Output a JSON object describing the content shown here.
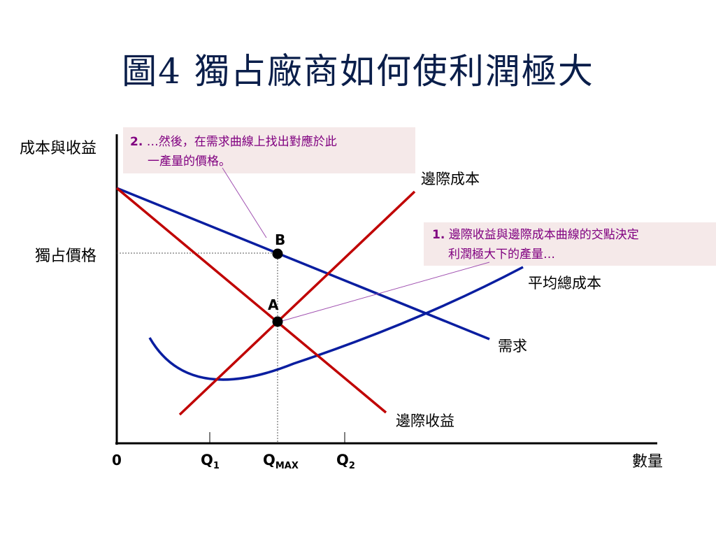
{
  "title": "圖4 獨占廠商如何使利潤極大",
  "colors": {
    "title": "#0a1e4a",
    "curve_blue": "#0a1ea0",
    "curve_red": "#c00000",
    "annotation_text": "#800080",
    "annotation_bg": "#f5e9e9",
    "leader_line": "#a050b0"
  },
  "axes": {
    "y_label": "成本與收益",
    "x_label": "數量",
    "origin": "0",
    "y_tick_label": "獨占價格",
    "x_ticks": {
      "q1_main": "Q",
      "q1_sub": "1",
      "qmax_main": "Q",
      "qmax_sub": "MAX",
      "q2_main": "Q",
      "q2_sub": "2"
    }
  },
  "curves": {
    "marginal_cost": "邊際成本",
    "average_total_cost": "平均總成本",
    "demand": "需求",
    "marginal_revenue": "邊際收益"
  },
  "points": {
    "a": "A",
    "b": "B"
  },
  "annotations": {
    "note1": {
      "number": "1.",
      "line1": " 邊際收益與邊際成本曲線的交點決定",
      "line2": "利潤極大下的產量…"
    },
    "note2": {
      "number": "2.",
      "line1": " …然後，在需求曲線上找出對應於此",
      "line2": "一產量的價格。"
    }
  }
}
